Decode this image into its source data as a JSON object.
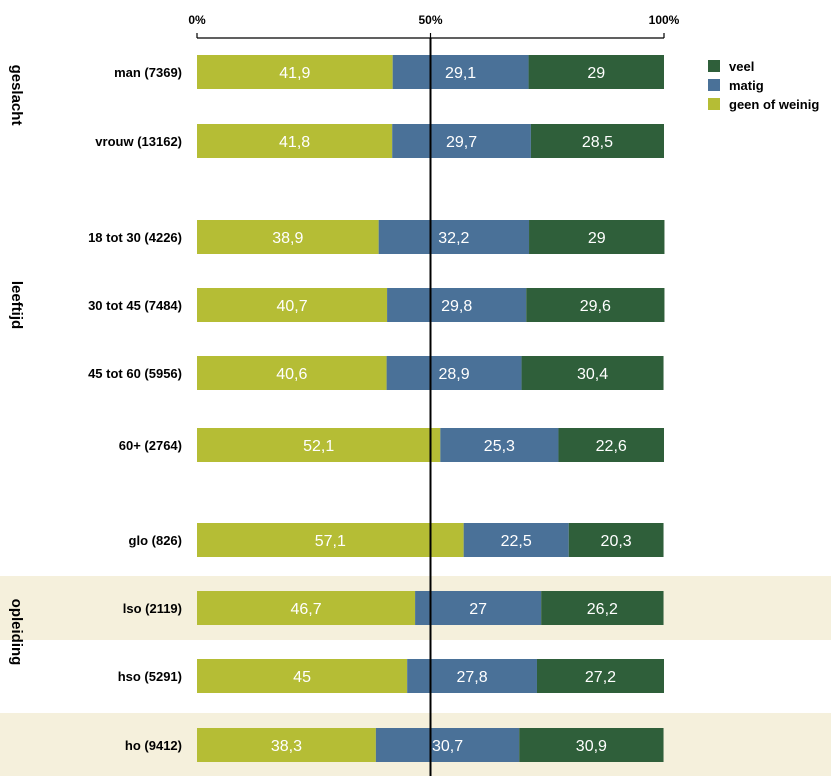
{
  "chart_data": {
    "type": "bar",
    "orientation": "horizontal",
    "stacked": true,
    "normalized": true,
    "title": "",
    "xlabel": "",
    "ylabel": "",
    "xlim": [
      0,
      100
    ],
    "x_ticks": [
      "0%",
      "50%",
      "100%"
    ],
    "legend_placement": "top-right",
    "grid": false,
    "groups": [
      {
        "label": "geslacht",
        "categories": [
          "man (7369)",
          "vrouw (13162)"
        ]
      },
      {
        "label": "leeftijd",
        "categories": [
          "18 tot 30 (4226)",
          "30 tot 45 (7484)",
          "45 tot 60 (5956)",
          "60+ (2764)"
        ]
      },
      {
        "label": "opleiding",
        "categories": [
          "glo (826)",
          "lso (2119)",
          "hso (5291)",
          "ho (9412)"
        ]
      }
    ],
    "categories": [
      "man (7369)",
      "vrouw (13162)",
      "18 tot 30 (4226)",
      "30 tot 45 (7484)",
      "45 tot 60 (5956)",
      "60+ (2764)",
      "glo (826)",
      "lso (2119)",
      "hso (5291)",
      "ho (9412)"
    ],
    "series": [
      {
        "name": "geen of weinig",
        "color": "#b5bd35",
        "values": [
          41.9,
          41.8,
          38.9,
          40.7,
          40.6,
          52.1,
          57.1,
          46.7,
          45,
          38.3
        ],
        "labels": [
          "41,9",
          "41,8",
          "38,9",
          "40,7",
          "40,6",
          "52,1",
          "57,1",
          "46,7",
          "45",
          "38,3"
        ]
      },
      {
        "name": "matig",
        "color": "#4a7198",
        "values": [
          29.1,
          29.7,
          32.2,
          29.8,
          28.9,
          25.3,
          22.5,
          27,
          27.8,
          30.7
        ],
        "labels": [
          "29,1",
          "29,7",
          "32,2",
          "29,8",
          "28,9",
          "25,3",
          "22,5",
          "27",
          "27,8",
          "30,7"
        ]
      },
      {
        "name": "veel",
        "color": "#2f5f3a",
        "values": [
          29,
          28.5,
          29,
          29.6,
          30.4,
          22.6,
          20.3,
          26.2,
          27.2,
          30.9
        ],
        "labels": [
          "29",
          "28,5",
          "29",
          "29,6",
          "30,4",
          "22,6",
          "20,3",
          "26,2",
          "27,2",
          "30,9"
        ]
      }
    ],
    "legend_order": [
      "veel",
      "matig",
      "geen of weinig"
    ],
    "shaded_categories": [
      "lso (2119)",
      "ho (9412)"
    ],
    "shade_color": "#f5f0dc"
  }
}
